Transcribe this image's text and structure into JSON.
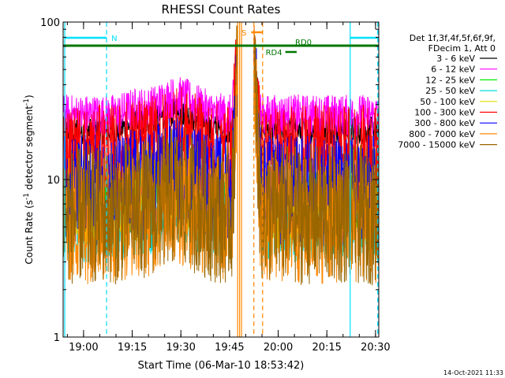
{
  "chart_data": {
    "type": "line",
    "title": "RHESSI Count Rates",
    "xlabel": "Start Time (06-Mar-10 18:53:42)",
    "ylabel": "Count Rate (s⁻¹ detector segment⁻¹)",
    "ylabel_parts": [
      "Count Rate (s",
      "-1",
      " detector segment",
      "-1",
      ")"
    ],
    "yscale": "log",
    "ylim": [
      1,
      100
    ],
    "xlim_minutes_since_18_53_42": [
      0,
      97.3
    ],
    "x_ticks": [
      {
        "label": "19:00",
        "minutes": 6.3
      },
      {
        "label": "19:15",
        "minutes": 21.3
      },
      {
        "label": "19:30",
        "minutes": 36.3
      },
      {
        "label": "19:45",
        "minutes": 51.3
      },
      {
        "label": "20:00",
        "minutes": 66.3
      },
      {
        "label": "20:15",
        "minutes": 81.3
      },
      {
        "label": "20:30",
        "minutes": 96.3
      }
    ],
    "y_tick_labels": [
      {
        "label": "1",
        "value": 1
      },
      {
        "label": "10",
        "value": 10
      },
      {
        "label": "100",
        "value": 100
      }
    ],
    "legend_header": [
      "Det 1f,3f,4f,5f,6f,9f,",
      "FDecim 1, Att 0"
    ],
    "series": [
      {
        "name": "3 - 6 keV",
        "color": "#000000",
        "base": 20.5,
        "peak": 69
      },
      {
        "name": "6 - 12 keV",
        "color": "#ff00ff",
        "base": 25.5,
        "peak": 68
      },
      {
        "name": "12 - 25 keV",
        "color": "#00ee00",
        "base": 7.5,
        "peak": 66
      },
      {
        "name": "25 - 50 keV",
        "color": "#00dddd",
        "base": 5.0,
        "peak": 60
      },
      {
        "name": "50 - 100 keV",
        "color": "#dddd00",
        "base": 6.8,
        "peak": 64
      },
      {
        "name": "100 - 300 keV",
        "color": "#ff0000",
        "base": 14.5,
        "peak": 70
      },
      {
        "name": "300 - 800 keV",
        "color": "#0000ff",
        "base": 8.5,
        "peak": 72
      },
      {
        "name": "800 - 7000 keV",
        "color": "#ff8800",
        "base": 5.5,
        "peak": 62
      },
      {
        "name": "7000 - 15000 keV",
        "color": "#996600",
        "base": 6.0,
        "peak": 58
      }
    ],
    "flag_bars": [
      {
        "label": "N",
        "color": "#00e0ff",
        "segments": [
          [
            0.5,
            13.4
          ],
          [
            88.5,
            97.0
          ]
        ]
      },
      {
        "label": "S",
        "color": "#ff8800",
        "segments": [
          [
            58.0,
            61.5
          ]
        ]
      },
      {
        "label": "RD4",
        "color": "#007700",
        "segments": [
          [
            68.5,
            72.0
          ]
        ]
      },
      {
        "label": "RD0",
        "color": "#007700",
        "segments": [
          [
            0,
            97.3
          ]
        ]
      }
    ],
    "vertical_markers": [
      {
        "minutes": 0.5,
        "color": "#00e0ff",
        "style": "solid"
      },
      {
        "minutes": 13.4,
        "color": "#00e0ff",
        "style": "dashed"
      },
      {
        "minutes": 88.5,
        "color": "#00e0ff",
        "style": "solid"
      },
      {
        "minutes": 97.0,
        "color": "#00e0ff",
        "style": "dashed"
      },
      {
        "minutes": 53.8,
        "color": "#ff8800",
        "style": "solid"
      },
      {
        "minutes": 54.4,
        "color": "#ff8800",
        "style": "solid"
      },
      {
        "minutes": 55.0,
        "color": "#ff8800",
        "style": "solid"
      },
      {
        "minutes": 58.8,
        "color": "#ff8800",
        "style": "dashed"
      },
      {
        "minutes": 61.5,
        "color": "#ff8800",
        "style": "dashed"
      }
    ],
    "timestamp": "14-Oct-2021 11:33"
  }
}
